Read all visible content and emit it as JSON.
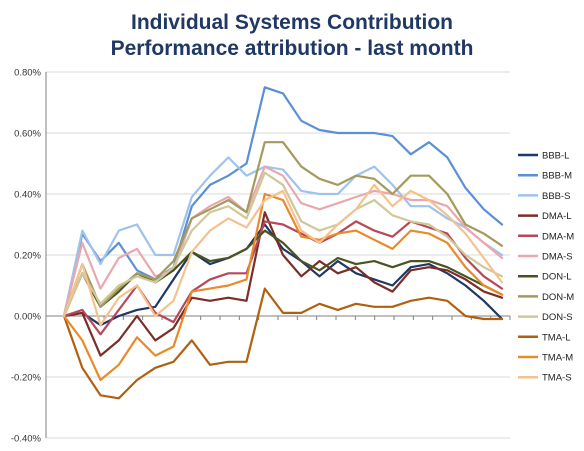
{
  "chart_data": {
    "type": "line",
    "title": "Individual Systems Contribution",
    "subtitle": "Performance attribution - last month",
    "xlabel": "",
    "ylabel": "",
    "ylim": [
      -0.4,
      0.8
    ],
    "y_ticks": [
      "0.80%",
      "0.60%",
      "0.40%",
      "0.20%",
      "0.00%",
      "-0.20%",
      "-0.40%"
    ],
    "y_tick_values": [
      0.8,
      0.6,
      0.4,
      0.2,
      0.0,
      -0.2,
      -0.4
    ],
    "y_unit": "%",
    "grid": true,
    "legend_position": "right",
    "x": [
      1,
      2,
      3,
      4,
      5,
      6,
      7,
      8,
      9,
      10,
      11,
      12,
      13,
      14,
      15,
      16,
      17,
      18,
      19,
      20,
      21,
      22,
      23,
      24,
      25
    ],
    "series": [
      {
        "name": "BBB-L",
        "color": "#1f3864",
        "values": [
          0,
          0.01,
          -0.03,
          0.0,
          0.02,
          0.03,
          0.12,
          0.21,
          0.17,
          0.19,
          0.22,
          0.3,
          0.22,
          0.18,
          0.13,
          0.18,
          0.14,
          0.12,
          0.1,
          0.16,
          0.17,
          0.14,
          0.1,
          0.05,
          -0.01
        ]
      },
      {
        "name": "BBB-M",
        "color": "#5b8fd6",
        "values": [
          0,
          0.27,
          0.18,
          0.24,
          0.15,
          0.12,
          0.16,
          0.36,
          0.43,
          0.46,
          0.5,
          0.75,
          0.73,
          0.64,
          0.61,
          0.6,
          0.6,
          0.6,
          0.59,
          0.53,
          0.57,
          0.52,
          0.42,
          0.35,
          0.3
        ]
      },
      {
        "name": "BBB-S",
        "color": "#9fc3eb",
        "values": [
          0,
          0.28,
          0.17,
          0.28,
          0.3,
          0.2,
          0.2,
          0.39,
          0.46,
          0.52,
          0.46,
          0.49,
          0.48,
          0.41,
          0.4,
          0.4,
          0.46,
          0.49,
          0.43,
          0.36,
          0.36,
          0.32,
          0.29,
          0.24,
          0.2
        ]
      },
      {
        "name": "DMA-L",
        "color": "#7b2d26",
        "values": [
          0,
          0.01,
          -0.13,
          -0.08,
          0.0,
          -0.08,
          -0.04,
          0.06,
          0.05,
          0.06,
          0.05,
          0.34,
          0.2,
          0.13,
          0.18,
          0.14,
          0.16,
          0.11,
          0.08,
          0.15,
          0.16,
          0.15,
          0.12,
          0.08,
          0.06
        ]
      },
      {
        "name": "DMA-M",
        "color": "#b5485a",
        "values": [
          0,
          0.02,
          -0.06,
          0.02,
          0.1,
          0.01,
          -0.02,
          0.08,
          0.12,
          0.14,
          0.14,
          0.31,
          0.3,
          0.27,
          0.24,
          0.27,
          0.31,
          0.28,
          0.26,
          0.31,
          0.29,
          0.27,
          0.19,
          0.13,
          0.09
        ]
      },
      {
        "name": "DMA-S",
        "color": "#e8a8ae",
        "values": [
          0,
          0.24,
          0.09,
          0.19,
          0.22,
          0.13,
          0.15,
          0.32,
          0.36,
          0.39,
          0.34,
          0.49,
          0.46,
          0.37,
          0.35,
          0.37,
          0.39,
          0.41,
          0.4,
          0.38,
          0.38,
          0.36,
          0.29,
          0.24,
          0.19
        ]
      },
      {
        "name": "DON-L",
        "color": "#4b5320",
        "values": [
          0,
          0.14,
          0.03,
          0.08,
          0.14,
          0.11,
          0.15,
          0.21,
          0.18,
          0.19,
          0.22,
          0.28,
          0.24,
          0.18,
          0.15,
          0.19,
          0.17,
          0.18,
          0.16,
          0.18,
          0.18,
          0.16,
          0.13,
          0.1,
          0.07
        ]
      },
      {
        "name": "DON-M",
        "color": "#a39a5e",
        "values": [
          0,
          0.17,
          0.03,
          0.09,
          0.14,
          0.12,
          0.18,
          0.32,
          0.35,
          0.38,
          0.34,
          0.57,
          0.57,
          0.49,
          0.45,
          0.43,
          0.46,
          0.45,
          0.4,
          0.46,
          0.46,
          0.4,
          0.3,
          0.27,
          0.23
        ]
      },
      {
        "name": "DON-S",
        "color": "#cfc89a",
        "values": [
          0,
          0.14,
          0.04,
          0.1,
          0.13,
          0.11,
          0.16,
          0.28,
          0.34,
          0.36,
          0.32,
          0.47,
          0.43,
          0.31,
          0.28,
          0.3,
          0.35,
          0.38,
          0.33,
          0.31,
          0.3,
          0.26,
          0.2,
          0.16,
          0.13
        ]
      },
      {
        "name": "TMA-L",
        "color": "#b06010",
        "values": [
          0,
          -0.17,
          -0.26,
          -0.27,
          -0.21,
          -0.17,
          -0.15,
          -0.08,
          -0.16,
          -0.15,
          -0.15,
          0.09,
          0.01,
          0.01,
          0.04,
          0.02,
          0.04,
          0.03,
          0.03,
          0.05,
          0.06,
          0.05,
          0.0,
          -0.01,
          -0.01
        ]
      },
      {
        "name": "TMA-M",
        "color": "#e98a2a",
        "values": [
          0,
          -0.08,
          -0.21,
          -0.16,
          -0.07,
          -0.13,
          -0.1,
          0.08,
          0.09,
          0.1,
          0.12,
          0.4,
          0.38,
          0.26,
          0.25,
          0.27,
          0.28,
          0.25,
          0.22,
          0.28,
          0.27,
          0.24,
          0.16,
          0.1,
          0.07
        ]
      },
      {
        "name": "TMA-S",
        "color": "#f5c28e",
        "values": [
          0,
          0.17,
          -0.03,
          0.06,
          0.1,
          0.0,
          0.05,
          0.21,
          0.28,
          0.32,
          0.29,
          0.38,
          0.41,
          0.28,
          0.24,
          0.3,
          0.35,
          0.43,
          0.36,
          0.41,
          0.38,
          0.33,
          0.27,
          0.19,
          0.11
        ]
      }
    ]
  },
  "colors": {
    "title": "#1f3864",
    "grid": "#d9d9d9",
    "axis": "#808080"
  }
}
